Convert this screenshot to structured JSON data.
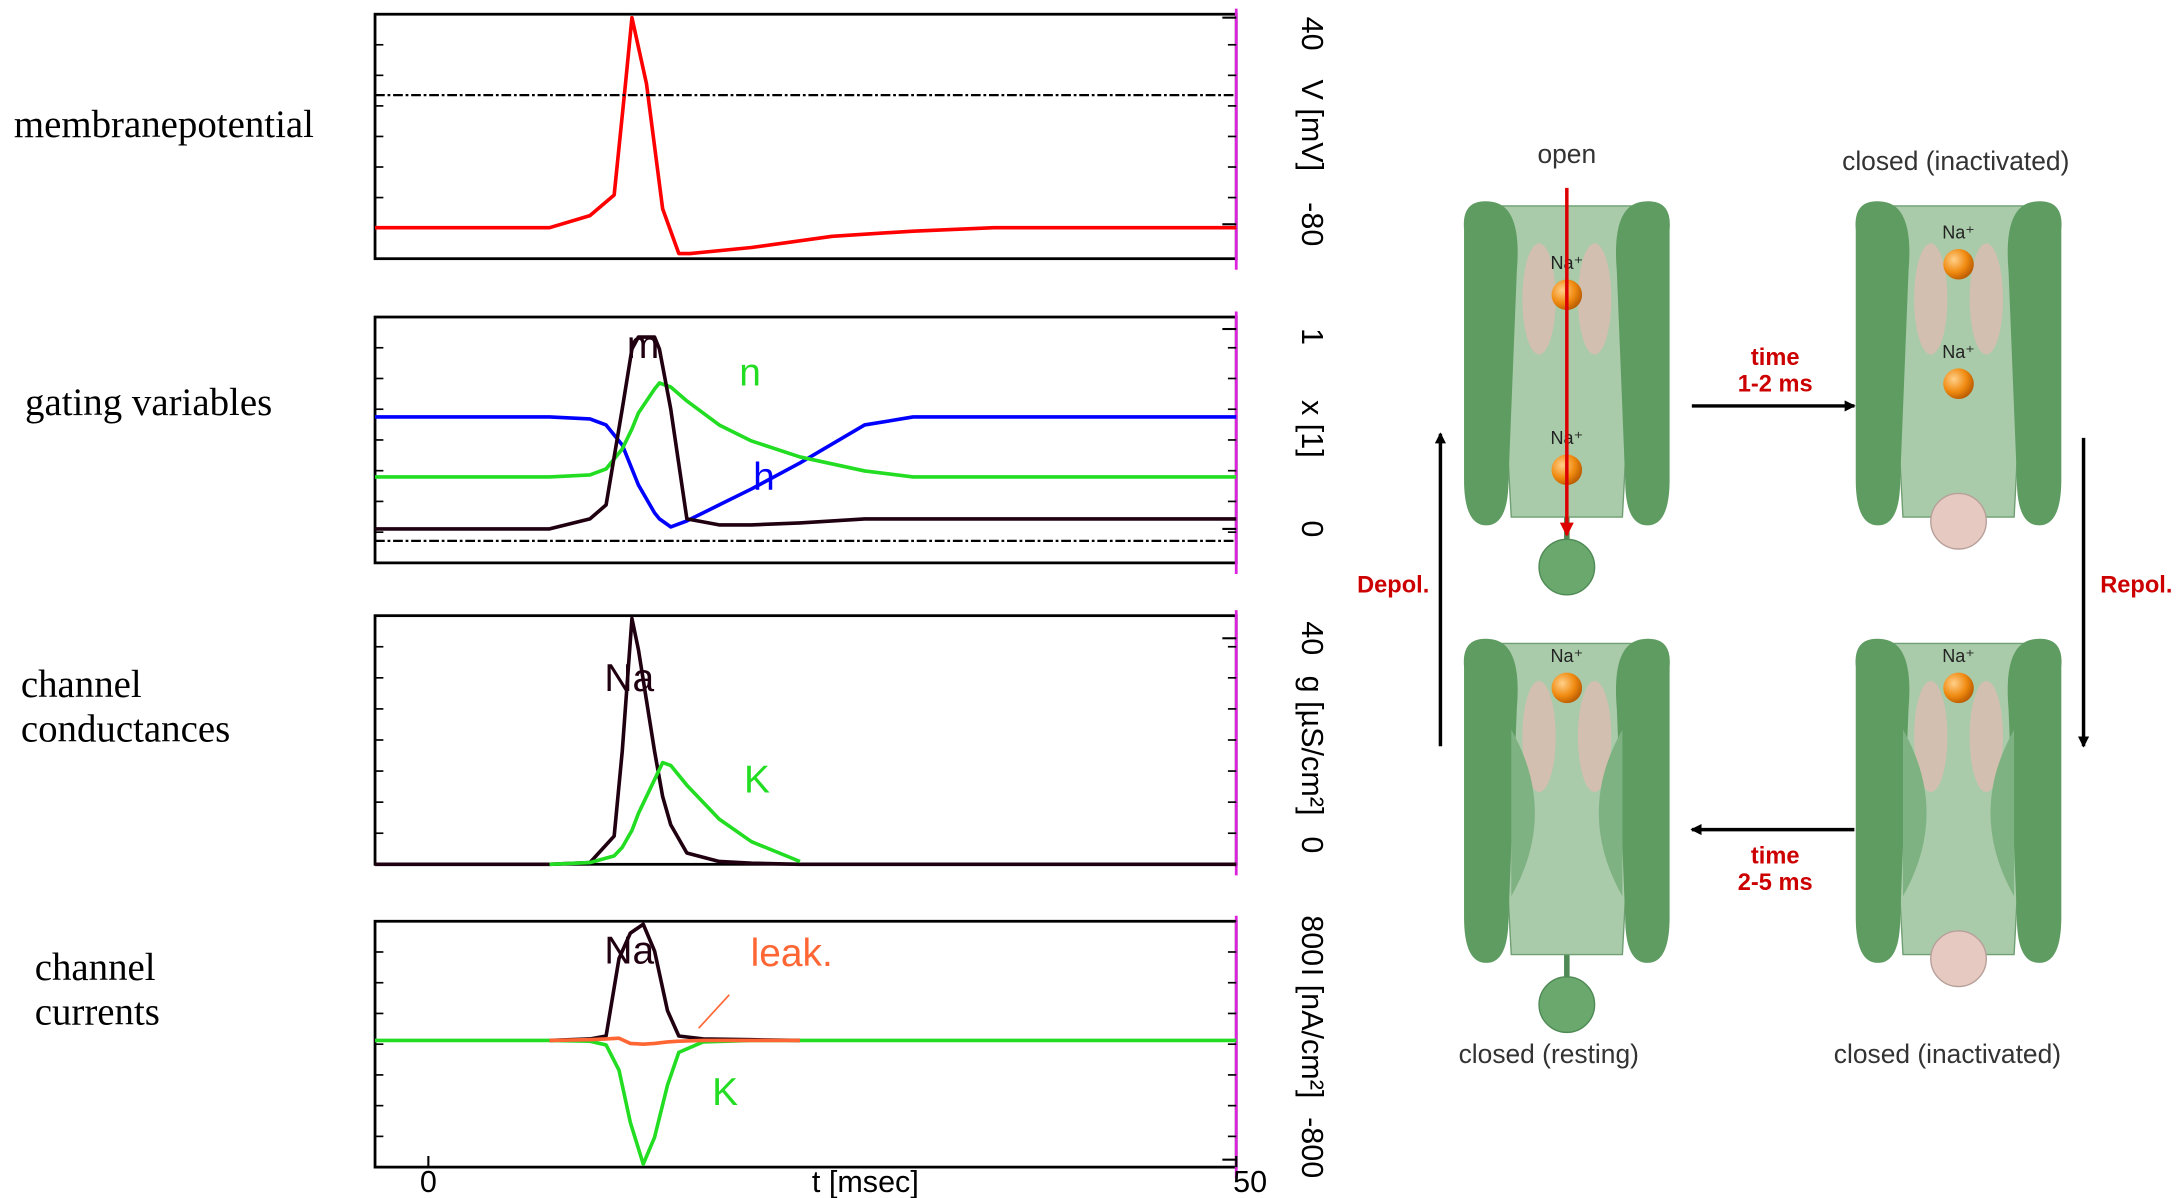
{
  "chart_data": [
    {
      "type": "line",
      "title": [
        "membranepotential"
      ],
      "ylabel": "V [mV]",
      "x": [
        -3.3,
        7.5,
        10,
        11.5,
        12.2,
        12.6,
        13.5,
        14.5,
        15.5,
        16.2,
        20,
        25,
        30,
        35,
        40,
        50
      ],
      "xlim": [
        -3.3,
        50
      ],
      "ylim": [
        -100,
        42
      ],
      "yticks": [
        -80,
        40
      ],
      "series": [
        {
          "color": "#ff0000",
          "values": [
            -82,
            -82,
            -75,
            -63,
            1.6,
            40,
            1.6,
            -71,
            -97,
            -97,
            -93.5,
            -87,
            -84,
            -82,
            -82,
            -82
          ]
        },
        {
          "color": "#000000",
          "style": "dashdot",
          "values": [
            -5,
            -5,
            -5,
            -5,
            -5,
            -5,
            -5,
            -5,
            -5,
            -5,
            -5,
            -5,
            -5,
            -5,
            -5,
            -5
          ]
        }
      ]
    },
    {
      "type": "line",
      "title": [
        "gating variables"
      ],
      "ylabel": "x [1]",
      "x": [
        -3.3,
        7.5,
        10,
        11,
        12,
        12.6,
        13,
        14,
        14.3,
        15,
        16,
        18,
        20,
        23,
        27,
        30,
        35,
        50
      ],
      "xlim": [
        -3.3,
        50
      ],
      "ylim": [
        -0.17,
        1.06
      ],
      "yticks": [
        0,
        1
      ],
      "series": [
        {
          "name": "h",
          "color": "#0000ff",
          "values": [
            0.56,
            0.56,
            0.55,
            0.52,
            0.42,
            0.3,
            0.22,
            0.08,
            0.05,
            0.01,
            0.04,
            0.12,
            0.2,
            0.33,
            0.52,
            0.56,
            0.56,
            0.56
          ]
        },
        {
          "name": "n",
          "color": "#22dd22",
          "values": [
            0.26,
            0.26,
            0.27,
            0.3,
            0.4,
            0.5,
            0.58,
            0.7,
            0.73,
            0.71,
            0.64,
            0.52,
            0.44,
            0.36,
            0.29,
            0.26,
            0.26,
            0.26
          ]
        },
        {
          "name": "m",
          "color": "#200010",
          "values": [
            0,
            0,
            0.05,
            0.12,
            0.6,
            0.9,
            0.96,
            0.96,
            0.9,
            0.6,
            0.05,
            0.02,
            0.02,
            0.03,
            0.05,
            0.05,
            0.05,
            0.05
          ]
        },
        {
          "color": "#000000",
          "style": "dashdot",
          "values": [
            -0.06,
            -0.06,
            -0.06,
            -0.06,
            -0.06,
            -0.06,
            -0.06,
            -0.06,
            -0.06,
            -0.06,
            -0.06,
            -0.06,
            -0.06,
            -0.06,
            -0.06,
            -0.06,
            -0.06,
            -0.06
          ]
        }
      ]
    },
    {
      "type": "line",
      "title": [
        "channel",
        "conductances"
      ],
      "ylabel": "g [µS/cm²]",
      "x": [
        -3.3,
        7.5,
        10,
        11.5,
        12,
        12.6,
        13,
        14,
        14.5,
        15,
        16,
        18,
        20,
        23,
        25,
        50
      ],
      "xlim": [
        -3.3,
        50
      ],
      "ylim": [
        0,
        44
      ],
      "yticks": [
        0,
        40
      ],
      "series": [
        {
          "name": "Na",
          "color": "#200010",
          "values": [
            0,
            0,
            0.3,
            5,
            20,
            43.5,
            38,
            20,
            12,
            7,
            2,
            0.5,
            0.2,
            0,
            0,
            0
          ]
        },
        {
          "name": "K",
          "color": "#22dd22",
          "values": [
            null,
            0,
            0.3,
            1.5,
            3,
            6,
            9,
            15,
            18,
            17.5,
            14,
            8,
            4,
            0.5,
            null,
            null
          ]
        }
      ]
    },
    {
      "type": "line",
      "title": [
        "channel",
        "currents"
      ],
      "ylabel": "I [nA/cm²]",
      "xlabel": "t [msec]",
      "x": [
        -3.3,
        7.5,
        10,
        11,
        11.8,
        12.5,
        13.3,
        14,
        14.8,
        15.5,
        17,
        20,
        23,
        50
      ],
      "xlim": [
        -3.3,
        50
      ],
      "ylim": [
        -850,
        800
      ],
      "yticks": [
        -800,
        800
      ],
      "xticks": [
        0,
        50
      ],
      "series": [
        {
          "name": "K",
          "color": "#22dd22",
          "values": [
            0,
            0,
            -5,
            -30,
            -200,
            -550,
            -830,
            -650,
            -300,
            -80,
            -10,
            0,
            0,
            0
          ]
        },
        {
          "name": "Na",
          "color": "#200010",
          "values": [
            null,
            0,
            10,
            30,
            550,
            720,
            780,
            600,
            200,
            30,
            10,
            5,
            0,
            null
          ]
        },
        {
          "name": "leak.",
          "color": "#ff6633",
          "values": [
            null,
            0,
            5,
            10,
            15,
            -20,
            -25,
            -20,
            -10,
            -5,
            0,
            0,
            0,
            null
          ]
        }
      ]
    }
  ],
  "diagram": {
    "states": [
      {
        "label": "open",
        "ions": [
          "Na⁺",
          "Na⁺"
        ]
      },
      {
        "label": "closed (inactivated)",
        "ions": [
          "Na⁺",
          "Na⁺"
        ]
      },
      {
        "label": "closed (resting)",
        "ions": [
          "Na⁺"
        ]
      },
      {
        "label": "closed (inactivated)",
        "ions": [
          "Na⁺"
        ]
      }
    ],
    "transitions": [
      {
        "label": [
          "time",
          "1-2 ms"
        ]
      },
      {
        "label": [
          "time",
          "2-5 ms"
        ]
      },
      {
        "label": [
          "Depol."
        ]
      },
      {
        "label": [
          "Repol."
        ]
      }
    ]
  }
}
